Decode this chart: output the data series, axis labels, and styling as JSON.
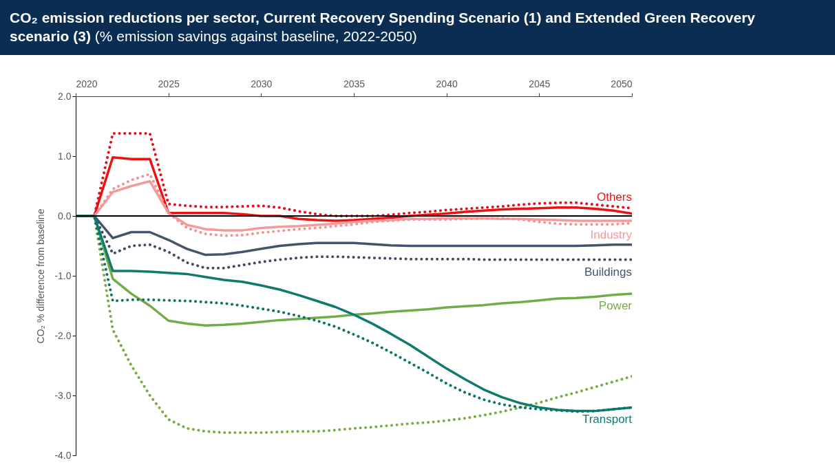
{
  "chart_data": {
    "type": "line",
    "title": "CO₂ emission reductions per sector, Current Recovery Spending Scenario (1) and Extended Green Recovery scenario (3)",
    "subtitle": "(% emission savings against baseline, 2022-2050)",
    "ylabel": "CO₂ % difference from baseline",
    "x": [
      2020,
      2021,
      2022,
      2023,
      2024,
      2025,
      2026,
      2027,
      2028,
      2029,
      2030,
      2031,
      2032,
      2033,
      2034,
      2035,
      2036,
      2037,
      2038,
      2039,
      2040,
      2041,
      2042,
      2043,
      2044,
      2045,
      2046,
      2047,
      2048,
      2049,
      2050
    ],
    "xlim": [
      2020,
      2050
    ],
    "xticks": [
      2020,
      2025,
      2030,
      2035,
      2040,
      2045,
      2050
    ],
    "ylim": [
      -4,
      2
    ],
    "yticks": [
      {
        "value": 2,
        "label": "2.0"
      },
      {
        "value": 1,
        "label": "1.0"
      },
      {
        "value": 0,
        "label": "0.0"
      },
      {
        "value": -1,
        "label": "-1.0"
      },
      {
        "value": -2,
        "label": "-2.0"
      },
      {
        "value": -3,
        "label": "-3.0"
      },
      {
        "value": -4,
        "label": "-4.0"
      }
    ],
    "ref_lines": [
      {
        "axis": "y",
        "value": 0,
        "color": "#000000",
        "line_style": "solid"
      }
    ],
    "series": [
      {
        "name": "Others",
        "color": "#ee1111",
        "line_style": "solid",
        "values": [
          0,
          0,
          0.98,
          0.95,
          0.95,
          0.05,
          0.05,
          0.05,
          0.05,
          0.03,
          0,
          0,
          -0.05,
          -0.07,
          -0.08,
          -0.07,
          -0.05,
          -0.03,
          0,
          0.02,
          0.04,
          0.07,
          0.09,
          0.11,
          0.12,
          0.13,
          0.14,
          0.14,
          0.12,
          0.09,
          0.04
        ]
      },
      {
        "color": "#e3101c",
        "line_style": "dotted",
        "values": [
          0,
          0,
          1.38,
          1.38,
          1.38,
          0.2,
          0.17,
          0.15,
          0.15,
          0.16,
          0.17,
          0.14,
          0.08,
          0.03,
          0,
          0,
          0,
          0.02,
          0.05,
          0.07,
          0.1,
          0.12,
          0.14,
          0.16,
          0.19,
          0.21,
          0.22,
          0.22,
          0.19,
          0.16,
          0.13
        ]
      },
      {
        "name": "Industry",
        "color": "#f49a9b",
        "line_style": "solid",
        "values": [
          0,
          0,
          0.4,
          0.5,
          0.58,
          0.05,
          -0.15,
          -0.22,
          -0.24,
          -0.24,
          -0.2,
          -0.18,
          -0.17,
          -0.15,
          -0.13,
          -0.1,
          -0.08,
          -0.07,
          -0.05,
          -0.05,
          -0.04,
          -0.04,
          -0.04,
          -0.05,
          -0.05,
          -0.06,
          -0.07,
          -0.08,
          -0.08,
          -0.08,
          -0.08
        ]
      },
      {
        "color": "#f09496",
        "line_style": "dotted",
        "values": [
          0,
          0,
          0.45,
          0.6,
          0.7,
          0.05,
          -0.2,
          -0.3,
          -0.33,
          -0.32,
          -0.28,
          -0.25,
          -0.22,
          -0.2,
          -0.17,
          -0.14,
          -0.1,
          -0.08,
          -0.06,
          -0.06,
          -0.06,
          -0.05,
          -0.04,
          -0.04,
          -0.06,
          -0.1,
          -0.13,
          -0.14,
          -0.14,
          -0.14,
          -0.12
        ]
      },
      {
        "name": "Buildings",
        "color": "#44546a",
        "line_style": "solid",
        "values": [
          0,
          0,
          -0.37,
          -0.27,
          -0.27,
          -0.4,
          -0.55,
          -0.65,
          -0.64,
          -0.6,
          -0.55,
          -0.5,
          -0.47,
          -0.45,
          -0.45,
          -0.45,
          -0.47,
          -0.49,
          -0.5,
          -0.5,
          -0.5,
          -0.5,
          -0.5,
          -0.5,
          -0.5,
          -0.5,
          -0.5,
          -0.5,
          -0.49,
          -0.48,
          -0.48
        ]
      },
      {
        "color": "#3f4d63",
        "line_style": "dotted",
        "values": [
          0,
          0,
          -0.63,
          -0.5,
          -0.48,
          -0.6,
          -0.78,
          -0.87,
          -0.87,
          -0.82,
          -0.77,
          -0.73,
          -0.7,
          -0.68,
          -0.68,
          -0.69,
          -0.7,
          -0.71,
          -0.72,
          -0.72,
          -0.72,
          -0.72,
          -0.73,
          -0.73,
          -0.73,
          -0.73,
          -0.73,
          -0.73,
          -0.73,
          -0.73,
          -0.73
        ]
      },
      {
        "name": "Power",
        "color": "#70ad47",
        "line_style": "solid",
        "values": [
          0,
          0,
          -1.05,
          -1.3,
          -1.5,
          -1.75,
          -1.8,
          -1.83,
          -1.82,
          -1.8,
          -1.77,
          -1.74,
          -1.72,
          -1.7,
          -1.68,
          -1.65,
          -1.63,
          -1.6,
          -1.58,
          -1.56,
          -1.53,
          -1.51,
          -1.49,
          -1.46,
          -1.44,
          -1.41,
          -1.38,
          -1.37,
          -1.35,
          -1.32,
          -1.3
        ]
      },
      {
        "color": "#7aab45",
        "line_style": "dotted",
        "values": [
          0,
          0,
          -1.9,
          -2.5,
          -3.0,
          -3.4,
          -3.55,
          -3.6,
          -3.62,
          -3.62,
          -3.62,
          -3.61,
          -3.6,
          -3.6,
          -3.58,
          -3.55,
          -3.53,
          -3.5,
          -3.47,
          -3.45,
          -3.42,
          -3.38,
          -3.33,
          -3.27,
          -3.2,
          -3.12,
          -3.03,
          -2.95,
          -2.86,
          -2.77,
          -2.68
        ]
      },
      {
        "name": "Transport",
        "color": "#0f7a6e",
        "line_style": "solid",
        "values": [
          0,
          0,
          -0.92,
          -0.92,
          -0.93,
          -0.95,
          -0.97,
          -1.02,
          -1.07,
          -1.1,
          -1.16,
          -1.23,
          -1.32,
          -1.42,
          -1.52,
          -1.65,
          -1.8,
          -1.97,
          -2.15,
          -2.35,
          -2.55,
          -2.73,
          -2.9,
          -3.03,
          -3.13,
          -3.2,
          -3.24,
          -3.26,
          -3.26,
          -3.23,
          -3.2
        ]
      },
      {
        "color": "#0d7468",
        "line_style": "dotted",
        "values": [
          0,
          0,
          -1.42,
          -1.4,
          -1.4,
          -1.41,
          -1.42,
          -1.44,
          -1.46,
          -1.5,
          -1.55,
          -1.6,
          -1.67,
          -1.75,
          -1.85,
          -1.98,
          -2.12,
          -2.28,
          -2.45,
          -2.62,
          -2.8,
          -2.95,
          -3.07,
          -3.15,
          -3.2,
          -3.23,
          -3.25,
          -3.27,
          -3.26,
          -3.23,
          -3.2
        ]
      }
    ]
  }
}
